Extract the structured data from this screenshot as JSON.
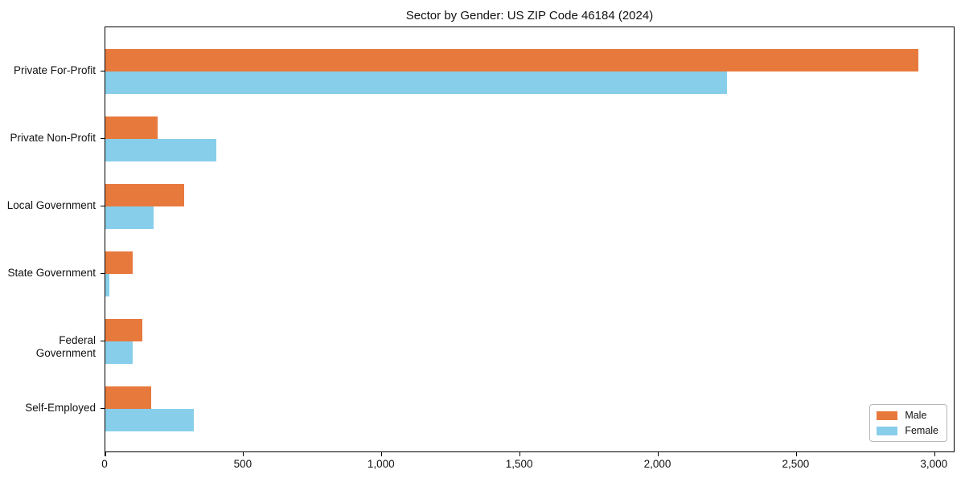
{
  "chart_data": {
    "type": "bar",
    "orientation": "horizontal",
    "title": "Sector by Gender: US ZIP Code 46184 (2024)",
    "categories": [
      "Private For-Profit",
      "Private Non-Profit",
      "Local Government",
      "State Government",
      "Federal Government",
      "Self-Employed"
    ],
    "series": [
      {
        "name": "Male",
        "color": "#e8793d",
        "values": [
          2940,
          190,
          285,
          100,
          135,
          165
        ]
      },
      {
        "name": "Female",
        "color": "#87ceeb",
        "values": [
          2250,
          400,
          175,
          15,
          100,
          320
        ]
      }
    ],
    "xlabel": "",
    "ylabel": "",
    "xlim": [
      0,
      3075
    ],
    "xticks": [
      {
        "value": 0,
        "label": "0"
      },
      {
        "value": 500,
        "label": "500"
      },
      {
        "value": 1000,
        "label": "1,000"
      },
      {
        "value": 1500,
        "label": "1,500"
      },
      {
        "value": 2000,
        "label": "2,000"
      },
      {
        "value": 2500,
        "label": "2,500"
      },
      {
        "value": 3000,
        "label": "3,000"
      }
    ],
    "grid": false,
    "legend": {
      "position": "lower right",
      "entries": [
        "Male",
        "Female"
      ]
    }
  }
}
